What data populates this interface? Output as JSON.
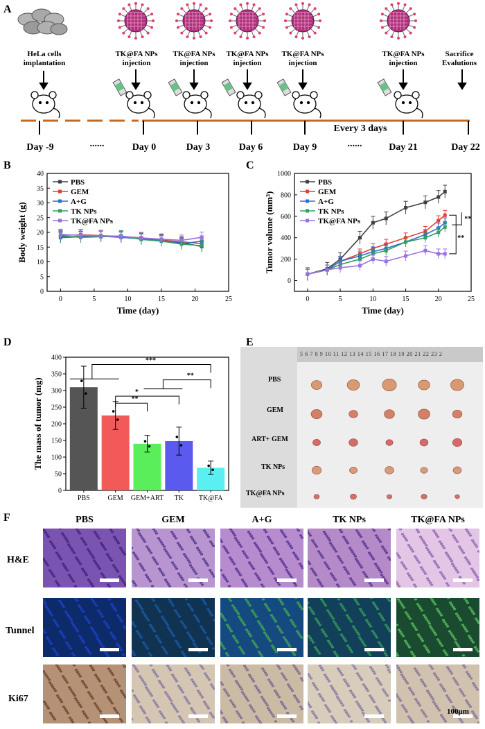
{
  "panel_A": {
    "letter": "A",
    "events": [
      {
        "text": "HeLa cells implantation"
      },
      {
        "text": "TK@FA NPs injection"
      },
      {
        "text": "TK@FA NPs injection"
      },
      {
        "text": "TK@FA NPs injection"
      },
      {
        "text": "TK@FA NPs injection"
      },
      {
        "text": "TK@FA NPs injection"
      },
      {
        "text": "Sacrifice Evalutions"
      }
    ],
    "days": [
      "Day -9",
      "......",
      "Day 0",
      "Day 3",
      "Day 6",
      "Day 9",
      "......",
      "Day 21",
      "Day 22"
    ],
    "every_label": "Every 3 days",
    "timeline_color": "#c8671e"
  },
  "panel_B": {
    "letter": "B"
  },
  "panel_C": {
    "letter": "C"
  },
  "panel_D": {
    "letter": "D"
  },
  "panel_E": {
    "letter": "E",
    "ruler": "5 6 7 8 9 10 11 12 13 14 15 16 17 18 19 20 21 22 23 2",
    "rows": [
      "PBS",
      "GEM",
      "ART+ GEM",
      "TK NPs",
      "TK@FA NPs"
    ]
  },
  "panel_F": {
    "letter": "F",
    "columns": [
      "PBS",
      "GEM",
      "A+G",
      "TK NPs",
      "TK@FA NPs"
    ],
    "rows": [
      "H&E",
      "Tunnel",
      "Ki67"
    ],
    "scale_bar": "100μm"
  },
  "chart_data": [
    {
      "id": "B",
      "type": "line",
      "title": "",
      "xlabel": "Time (day)",
      "ylabel": "Body weight (g)",
      "xlim": [
        -2,
        25
      ],
      "ylim": [
        0,
        40
      ],
      "xticks": [
        "0",
        "5",
        "10",
        "15",
        "20",
        "25"
      ],
      "yticks": [
        "0",
        "5",
        "10",
        "15",
        "20",
        "25",
        "30",
        "35",
        "40"
      ],
      "x": [
        0,
        3,
        6,
        9,
        12,
        15,
        18,
        21
      ],
      "series": [
        {
          "name": "PBS",
          "color": "#404040",
          "values": [
            18.5,
            18.6,
            18.8,
            18.4,
            18.0,
            17.5,
            16.5,
            15.2
          ]
        },
        {
          "name": "GEM",
          "color": "#e0403a",
          "values": [
            19.0,
            19.2,
            18.9,
            18.6,
            18.2,
            17.3,
            16.8,
            16.2
          ]
        },
        {
          "name": "A+G",
          "color": "#2f6fd0",
          "values": [
            18.2,
            18.5,
            18.7,
            18.3,
            17.8,
            17.2,
            16.2,
            17.0
          ]
        },
        {
          "name": "TK NPs",
          "color": "#2fa060",
          "values": [
            18.8,
            18.3,
            18.5,
            18.8,
            17.6,
            17.0,
            16.0,
            15.5
          ]
        },
        {
          "name": "TK@FA NPs",
          "color": "#9a70e0",
          "values": [
            19.3,
            19.0,
            18.8,
            18.6,
            18.1,
            17.7,
            17.3,
            18.3
          ]
        }
      ],
      "legend": [
        "PBS",
        "GEM",
        "A+G",
        "TK NPs",
        "TK@FA NPs"
      ]
    },
    {
      "id": "C",
      "type": "line",
      "title": "",
      "xlabel": "Time (day)",
      "ylabel": "Tumor volume (mm³)",
      "xlim": [
        -2,
        25
      ],
      "ylim": [
        -100,
        1000
      ],
      "xticks": [
        "0",
        "5",
        "10",
        "15",
        "20",
        "25"
      ],
      "yticks": [
        "0",
        "200",
        "400",
        "600",
        "800",
        "1000"
      ],
      "x": [
        0,
        3,
        5,
        8,
        10,
        12,
        15,
        18,
        20,
        21
      ],
      "series": [
        {
          "name": "PBS",
          "color": "#404040",
          "values": [
            60,
            110,
            200,
            400,
            540,
            580,
            680,
            730,
            780,
            830
          ]
        },
        {
          "name": "GEM",
          "color": "#e0403a",
          "values": [
            60,
            100,
            180,
            250,
            300,
            340,
            400,
            460,
            560,
            610
          ]
        },
        {
          "name": "A+G",
          "color": "#2f6fd0",
          "values": [
            60,
            100,
            180,
            230,
            270,
            300,
            360,
            430,
            490,
            540
          ]
        },
        {
          "name": "TK NPs",
          "color": "#2fa060",
          "values": [
            60,
            100,
            150,
            200,
            250,
            280,
            360,
            400,
            450,
            500
          ]
        },
        {
          "name": "TK@FA NPs",
          "color": "#9a70e0",
          "values": [
            60,
            100,
            120,
            140,
            200,
            180,
            230,
            280,
            250,
            250
          ]
        }
      ],
      "legend": [
        "PBS",
        "GEM",
        "A+G",
        "TK NPs",
        "TK@FA NPs"
      ],
      "annotations": [
        "**",
        "**"
      ]
    },
    {
      "id": "D",
      "type": "bar",
      "title": "",
      "xlabel": "",
      "ylabel": "The mass of tumor (mg)",
      "ylim": [
        0,
        400
      ],
      "yticks": [
        "0",
        "50",
        "100",
        "150",
        "200",
        "250",
        "300",
        "350",
        "400"
      ],
      "categories": [
        "PBS",
        "GEM",
        "GEM+ART",
        "TK",
        "TK@FA"
      ],
      "values": [
        310,
        225,
        140,
        148,
        68
      ],
      "errors": [
        63,
        42,
        25,
        42,
        20
      ],
      "colors": [
        "#555555",
        "#f25a5a",
        "#5aef5a",
        "#5a5aef",
        "#5aeff0"
      ],
      "annotations": [
        "***",
        "**",
        "*",
        "**"
      ]
    }
  ]
}
